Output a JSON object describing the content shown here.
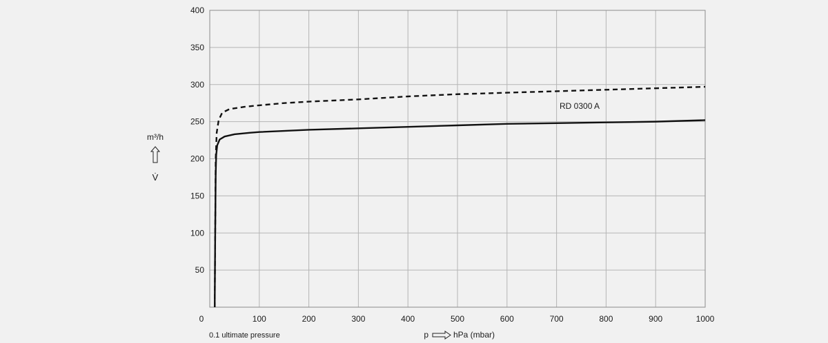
{
  "chart_data": {
    "type": "line",
    "title": "",
    "xlabel": "p",
    "x_unit": "hPa (mbar)",
    "ylabel": "V̇",
    "y_unit": "m³/h",
    "xlim": [
      0,
      1000
    ],
    "ylim": [
      0,
      400
    ],
    "x_ticks": [
      "0",
      "100",
      "200",
      "300",
      "400",
      "500",
      "600",
      "700",
      "800",
      "900",
      "1000"
    ],
    "y_ticks": [
      "50",
      "100",
      "150",
      "200",
      "250",
      "300",
      "350",
      "400"
    ],
    "grid": true,
    "annotation": "0.1 ultimate pressure",
    "series": [
      {
        "name": "",
        "style": "dashed",
        "color": "#111111",
        "x": [
          10,
          11,
          12,
          14,
          18,
          25,
          40,
          70,
          100,
          150,
          200,
          300,
          400,
          500,
          600,
          700,
          800,
          900,
          1000
        ],
        "y": [
          0,
          100,
          200,
          235,
          252,
          262,
          267,
          270,
          272,
          275,
          277,
          280,
          284,
          287,
          289,
          291,
          293,
          295,
          297
        ]
      },
      {
        "name": "RD 0300 A",
        "style": "solid",
        "color": "#111111",
        "x": [
          10,
          11,
          12,
          13,
          15,
          20,
          30,
          50,
          80,
          100,
          200,
          300,
          400,
          500,
          600,
          700,
          800,
          900,
          1000
        ],
        "y": [
          0,
          100,
          180,
          205,
          218,
          226,
          230,
          233,
          235,
          236,
          239,
          241,
          243,
          245,
          247,
          248,
          249,
          250,
          252
        ]
      }
    ]
  }
}
